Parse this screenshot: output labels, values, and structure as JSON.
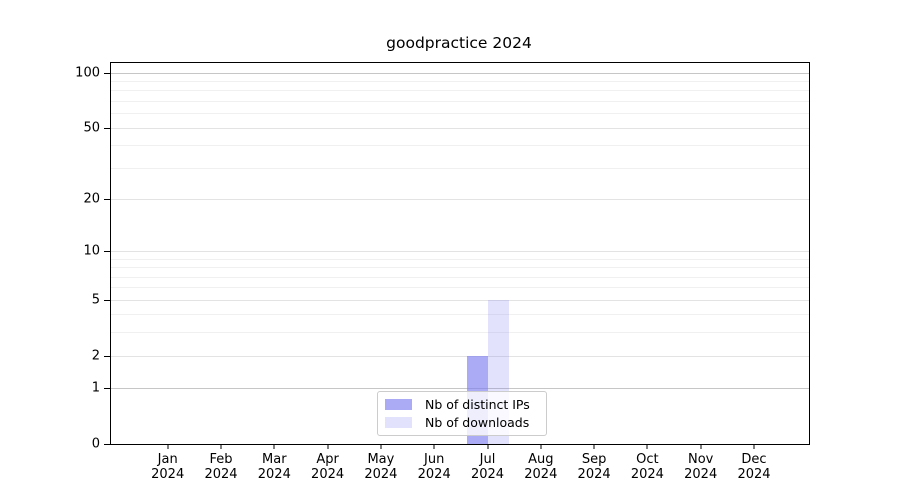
{
  "chart_data": {
    "type": "bar",
    "title": "goodpractice 2024",
    "categories": [
      "Jan",
      "Feb",
      "Mar",
      "Apr",
      "May",
      "Jun",
      "Jul",
      "Aug",
      "Sep",
      "Oct",
      "Nov",
      "Dec"
    ],
    "category_year": "2024",
    "series": [
      {
        "name": "Nb of distinct IPs",
        "color": "rgba(124,124,240,0.65)",
        "values": [
          0,
          0,
          0,
          0,
          0,
          0,
          2,
          0,
          0,
          0,
          0,
          0
        ]
      },
      {
        "name": "Nb of downloads",
        "color": "rgba(124,124,240,0.22)",
        "values": [
          0,
          0,
          0,
          0,
          0,
          0,
          5,
          0,
          0,
          0,
          0,
          0
        ]
      }
    ],
    "y_axis": {
      "scale": "log1p",
      "ticks": [
        0,
        1,
        2,
        5,
        10,
        20,
        50,
        100
      ],
      "minor_ticks": [
        3,
        4,
        6,
        7,
        8,
        9,
        30,
        40,
        60,
        70,
        80,
        90
      ],
      "strong_grid_ticks": [
        1,
        100
      ],
      "max": 117
    },
    "x_axis": {
      "label": ""
    },
    "grid": true,
    "legend_position": "bottom-center"
  },
  "colors": {
    "background": "#ffffff",
    "spine": "#000000",
    "text": "#000000",
    "grid_minor": "#f0f0f0",
    "grid_major": "#e3e3e3",
    "grid_strong": "#c6c6c6",
    "legend_border": "#cccccc",
    "legend_background": "rgba(255,255,255,0.8)"
  }
}
